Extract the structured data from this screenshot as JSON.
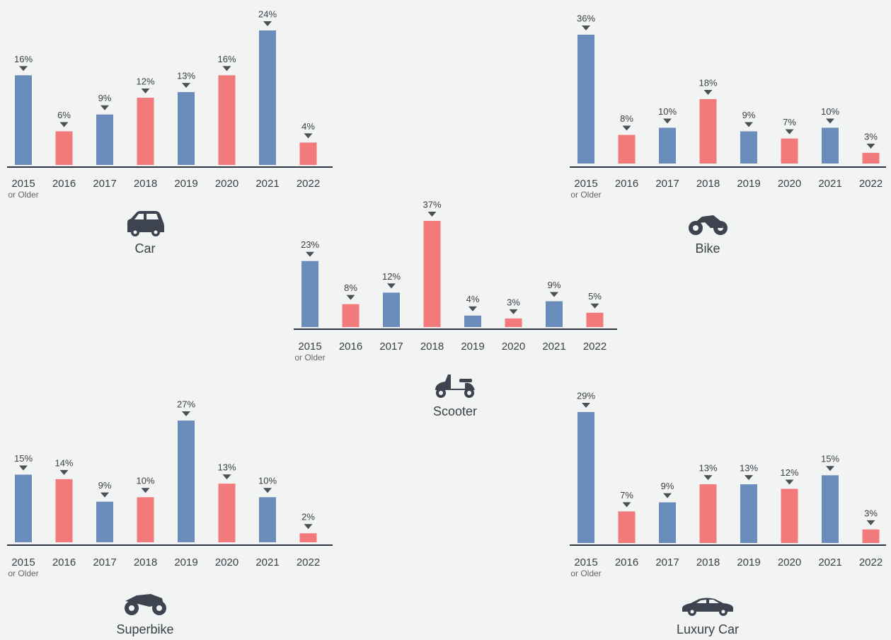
{
  "chart_data": [
    {
      "type": "bar",
      "title": "Car",
      "categories": [
        "2015",
        "2016",
        "2017",
        "2018",
        "2019",
        "2020",
        "2021",
        "2022"
      ],
      "first_category_note": "or Older",
      "values": [
        16,
        6,
        9,
        12,
        13,
        16,
        24,
        4
      ],
      "value_labels": [
        "16%",
        "6%",
        "9%",
        "12%",
        "13%",
        "16%",
        "24%",
        "4%"
      ],
      "colors": [
        "#6a8cbb",
        "#f27a7a"
      ]
    },
    {
      "type": "bar",
      "title": "Bike",
      "categories": [
        "2015",
        "2016",
        "2017",
        "2018",
        "2019",
        "2020",
        "2021",
        "2022"
      ],
      "first_category_note": "or Older",
      "values": [
        36,
        8,
        10,
        18,
        9,
        7,
        10,
        3
      ],
      "value_labels": [
        "36%",
        "8%",
        "10%",
        "18%",
        "9%",
        "7%",
        "10%",
        "3%"
      ],
      "colors": [
        "#6a8cbb",
        "#f27a7a"
      ]
    },
    {
      "type": "bar",
      "title": "Scooter",
      "categories": [
        "2015",
        "2016",
        "2017",
        "2018",
        "2019",
        "2020",
        "2021",
        "2022"
      ],
      "first_category_note": "or Older",
      "values": [
        23,
        8,
        12,
        37,
        4,
        3,
        9,
        5
      ],
      "value_labels": [
        "23%",
        "8%",
        "12%",
        "37%",
        "4%",
        "3%",
        "9%",
        "5%"
      ],
      "colors": [
        "#6a8cbb",
        "#f27a7a"
      ]
    },
    {
      "type": "bar",
      "title": "Superbike",
      "categories": [
        "2015",
        "2016",
        "2017",
        "2018",
        "2019",
        "2020",
        "2021",
        "2022"
      ],
      "first_category_note": "or Older",
      "values": [
        15,
        14,
        9,
        10,
        27,
        13,
        10,
        2
      ],
      "value_labels": [
        "15%",
        "14%",
        "9%",
        "10%",
        "27%",
        "13%",
        "10%",
        "2%"
      ],
      "colors": [
        "#6a8cbb",
        "#f27a7a"
      ]
    },
    {
      "type": "bar",
      "title": "Luxury Car",
      "categories": [
        "2015",
        "2016",
        "2017",
        "2018",
        "2019",
        "2020",
        "2021",
        "2022"
      ],
      "first_category_note": "or Older",
      "values": [
        29,
        7,
        9,
        13,
        13,
        12,
        15,
        3
      ],
      "value_labels": [
        "29%",
        "7%",
        "9%",
        "13%",
        "13%",
        "12%",
        "15%",
        "3%"
      ],
      "colors": [
        "#6a8cbb",
        "#f27a7a"
      ]
    }
  ]
}
